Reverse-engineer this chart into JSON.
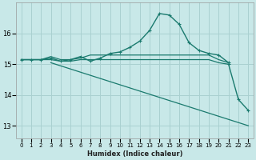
{
  "xlabel": "Humidex (Indice chaleur)",
  "bg_color": "#c8e8e8",
  "grid_color": "#aad0d0",
  "line_color": "#1a7a6e",
  "xlim": [
    -0.5,
    23.5
  ],
  "ylim": [
    12.6,
    17.0
  ],
  "xticks": [
    0,
    1,
    2,
    3,
    4,
    5,
    6,
    7,
    8,
    9,
    10,
    11,
    12,
    13,
    14,
    15,
    16,
    17,
    18,
    19,
    20,
    21,
    22,
    23
  ],
  "yticks": [
    13,
    14,
    15,
    16
  ],
  "lines": [
    {
      "x": [
        0,
        1,
        2,
        3,
        4,
        5,
        6,
        7,
        8,
        9,
        10,
        11,
        12,
        13,
        14,
        15,
        16,
        17,
        18,
        19,
        20,
        21
      ],
      "y": [
        15.15,
        15.15,
        15.15,
        15.2,
        15.1,
        15.15,
        15.25,
        15.1,
        15.2,
        15.35,
        15.4,
        15.55,
        15.75,
        16.1,
        16.65,
        16.6,
        16.3,
        15.7,
        15.45,
        15.35,
        15.3,
        15.05
      ],
      "marker": true,
      "lw": 1.0
    },
    {
      "x": [
        0,
        1,
        2,
        3,
        4,
        5,
        6,
        7,
        8,
        9,
        10,
        11,
        12,
        13,
        14,
        15,
        16,
        17,
        18,
        19,
        20,
        21
      ],
      "y": [
        15.15,
        15.15,
        15.15,
        15.15,
        15.1,
        15.1,
        15.15,
        15.15,
        15.15,
        15.15,
        15.15,
        15.15,
        15.15,
        15.15,
        15.15,
        15.15,
        15.15,
        15.15,
        15.15,
        15.15,
        15.05,
        15.0
      ],
      "marker": false,
      "lw": 0.9
    },
    {
      "x": [
        0,
        1,
        2,
        3,
        4,
        5,
        6,
        7,
        8,
        9,
        10,
        11,
        12,
        13,
        14,
        15,
        16,
        17,
        18,
        19,
        20,
        21
      ],
      "y": [
        15.15,
        15.15,
        15.15,
        15.25,
        15.15,
        15.15,
        15.2,
        15.3,
        15.3,
        15.3,
        15.3,
        15.3,
        15.3,
        15.3,
        15.3,
        15.3,
        15.3,
        15.3,
        15.3,
        15.3,
        15.15,
        15.05
      ],
      "marker": false,
      "lw": 0.9
    },
    {
      "x": [
        3,
        23
      ],
      "y": [
        15.05,
        13.0
      ],
      "marker": false,
      "lw": 0.9
    },
    {
      "x": [
        21,
        22,
        23
      ],
      "y": [
        15.0,
        13.85,
        13.5
      ],
      "marker": true,
      "lw": 1.0
    }
  ]
}
